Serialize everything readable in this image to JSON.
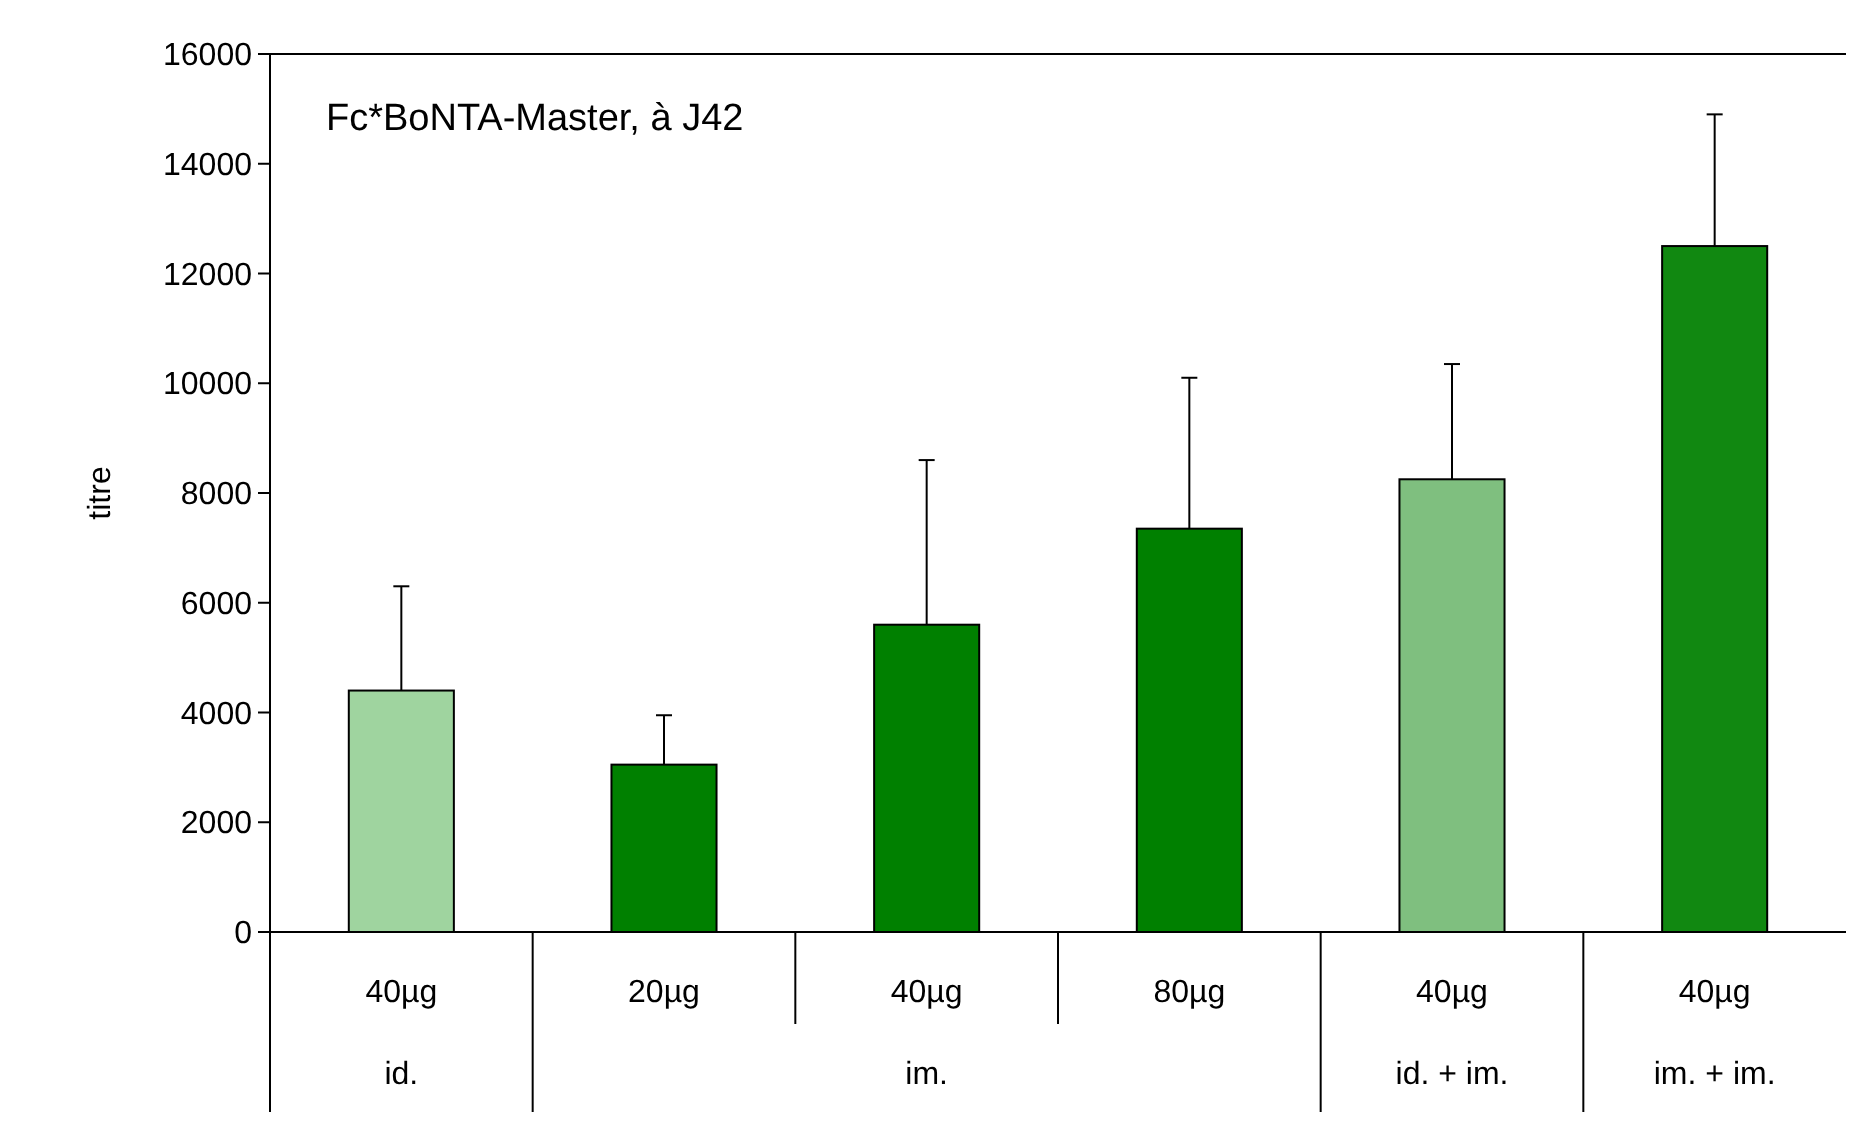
{
  "chart_data": {
    "type": "bar",
    "title": "Fc*BoNTA-Master, à J42",
    "ylabel": "titre",
    "categories": [
      "40µg",
      "20µg",
      "40µg",
      "80µg",
      "40µg",
      "40µg"
    ],
    "values": [
      4400,
      3050,
      5600,
      7350,
      8250,
      12500
    ],
    "errors": [
      1900,
      900,
      3000,
      2750,
      2100,
      2400
    ],
    "colors": [
      "#9fd49f",
      "#008000",
      "#008000",
      "#008000",
      "#7fbf7f",
      "#118811"
    ],
    "annotations": [
      "id.",
      "im.",
      "id. + im.",
      "im. + im."
    ],
    "ylim": [
      0,
      16000
    ],
    "yticks": [
      0,
      2000,
      4000,
      6000,
      8000,
      10000,
      12000,
      14000,
      16000
    ],
    "grid": false
  }
}
